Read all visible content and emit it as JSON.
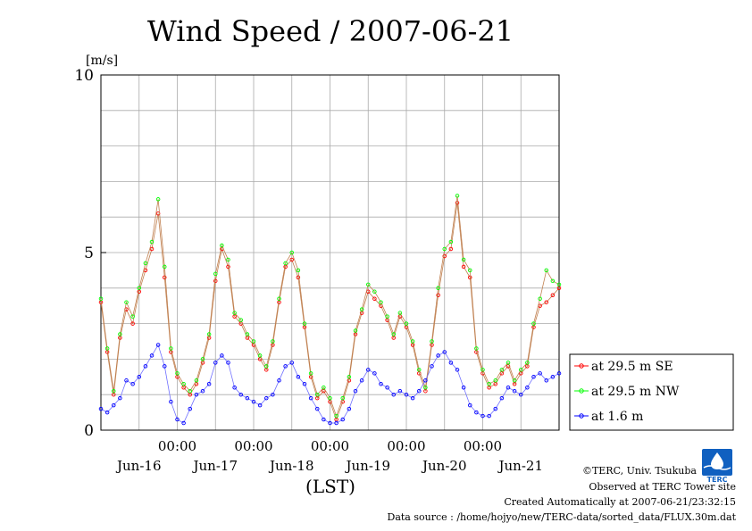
{
  "chart_data": {
    "type": "line",
    "title": "Wind Speed / 2007-06-21",
    "ylabel": "[m/s]",
    "xlabel": "(LST)",
    "ylim": [
      0,
      10
    ],
    "y_ticks": [
      "0",
      "5",
      "10"
    ],
    "y_tick_values": [
      0,
      5,
      10
    ],
    "x_range_hours": [
      0,
      144
    ],
    "x_tick_label": "00:00",
    "x_ticks_hours": [
      24,
      48,
      72,
      96,
      120
    ],
    "x_day_labels": [
      "Jun-16",
      "Jun-17",
      "Jun-18",
      "Jun-19",
      "Jun-20",
      "Jun-21"
    ],
    "x_day_label_hours": [
      12,
      36,
      60,
      84,
      108,
      132
    ],
    "grid": true,
    "legend_position": "right",
    "series": [
      {
        "name": "at 29.5 m SE",
        "color": "#ff0000",
        "x": [
          0,
          2,
          4,
          6,
          8,
          10,
          12,
          14,
          16,
          18,
          20,
          22,
          24,
          26,
          28,
          30,
          32,
          34,
          36,
          38,
          40,
          42,
          44,
          46,
          48,
          50,
          52,
          54,
          56,
          58,
          60,
          62,
          64,
          66,
          68,
          70,
          72,
          74,
          76,
          78,
          80,
          82,
          84,
          86,
          88,
          90,
          92,
          94,
          96,
          98,
          100,
          102,
          104,
          106,
          108,
          110,
          112,
          114,
          116,
          118,
          120,
          122,
          124,
          126,
          128,
          130,
          132,
          134,
          136,
          138,
          140,
          142,
          144
        ],
        "values": [
          3.6,
          2.2,
          1.0,
          2.6,
          3.4,
          3.0,
          3.9,
          4.5,
          5.1,
          6.1,
          4.3,
          2.2,
          1.5,
          1.2,
          1.0,
          1.3,
          1.9,
          2.6,
          4.2,
          5.1,
          4.6,
          3.2,
          3.0,
          2.6,
          2.4,
          2.0,
          1.7,
          2.4,
          3.6,
          4.6,
          4.8,
          4.3,
          2.9,
          1.5,
          0.9,
          1.1,
          0.8,
          0.3,
          0.8,
          1.4,
          2.7,
          3.3,
          3.9,
          3.7,
          3.5,
          3.1,
          2.6,
          3.2,
          2.9,
          2.4,
          1.6,
          1.1,
          2.4,
          3.8,
          4.9,
          5.1,
          6.4,
          4.6,
          4.3,
          2.2,
          1.6,
          1.2,
          1.3,
          1.6,
          1.8,
          1.3,
          1.6,
          1.8,
          2.9,
          3.5,
          3.6,
          3.8,
          4.0
        ]
      },
      {
        "name": "at 29.5 m NW",
        "color": "#00ff00",
        "x": [
          0,
          2,
          4,
          6,
          8,
          10,
          12,
          14,
          16,
          18,
          20,
          22,
          24,
          26,
          28,
          30,
          32,
          34,
          36,
          38,
          40,
          42,
          44,
          46,
          48,
          50,
          52,
          54,
          56,
          58,
          60,
          62,
          64,
          66,
          68,
          70,
          72,
          74,
          76,
          78,
          80,
          82,
          84,
          86,
          88,
          90,
          92,
          94,
          96,
          98,
          100,
          102,
          104,
          106,
          108,
          110,
          112,
          114,
          116,
          118,
          120,
          122,
          124,
          126,
          128,
          130,
          132,
          134,
          136,
          138,
          140,
          142,
          144
        ],
        "values": [
          3.7,
          2.3,
          1.1,
          2.7,
          3.6,
          3.2,
          4.0,
          4.7,
          5.3,
          6.5,
          4.6,
          2.3,
          1.6,
          1.3,
          1.1,
          1.4,
          2.0,
          2.7,
          4.4,
          5.2,
          4.8,
          3.3,
          3.1,
          2.7,
          2.5,
          2.1,
          1.8,
          2.5,
          3.7,
          4.7,
          5.0,
          4.5,
          3.0,
          1.6,
          1.0,
          1.2,
          0.9,
          0.4,
          0.9,
          1.5,
          2.8,
          3.4,
          4.1,
          3.9,
          3.6,
          3.2,
          2.7,
          3.3,
          3.0,
          2.5,
          1.7,
          1.2,
          2.5,
          4.0,
          5.1,
          5.3,
          6.6,
          4.8,
          4.5,
          2.3,
          1.7,
          1.3,
          1.4,
          1.7,
          1.9,
          1.4,
          1.7,
          1.9,
          3.0,
          3.7,
          4.5,
          4.2,
          4.1
        ]
      },
      {
        "name": "at 1.6 m",
        "color": "#0000ff",
        "x": [
          0,
          2,
          4,
          6,
          8,
          10,
          12,
          14,
          16,
          18,
          20,
          22,
          24,
          26,
          28,
          30,
          32,
          34,
          36,
          38,
          40,
          42,
          44,
          46,
          48,
          50,
          52,
          54,
          56,
          58,
          60,
          62,
          64,
          66,
          68,
          70,
          72,
          74,
          76,
          78,
          80,
          82,
          84,
          86,
          88,
          90,
          92,
          94,
          96,
          98,
          100,
          102,
          104,
          106,
          108,
          110,
          112,
          114,
          116,
          118,
          120,
          122,
          124,
          126,
          128,
          130,
          132,
          134,
          136,
          138,
          140,
          142,
          144
        ],
        "values": [
          0.6,
          0.5,
          0.7,
          0.9,
          1.4,
          1.3,
          1.5,
          1.8,
          2.1,
          2.4,
          1.8,
          0.8,
          0.3,
          0.2,
          0.6,
          1.0,
          1.1,
          1.3,
          1.9,
          2.1,
          1.9,
          1.2,
          1.0,
          0.9,
          0.8,
          0.7,
          0.9,
          1.0,
          1.4,
          1.8,
          1.9,
          1.5,
          1.3,
          0.9,
          0.6,
          0.3,
          0.2,
          0.2,
          0.3,
          0.6,
          1.1,
          1.4,
          1.7,
          1.6,
          1.3,
          1.2,
          1.0,
          1.1,
          1.0,
          0.9,
          1.1,
          1.4,
          1.8,
          2.1,
          2.2,
          1.9,
          1.7,
          1.2,
          0.7,
          0.5,
          0.4,
          0.4,
          0.6,
          0.9,
          1.2,
          1.1,
          1.0,
          1.2,
          1.5,
          1.6,
          1.4,
          1.5,
          1.6
        ]
      }
    ]
  },
  "footer": {
    "copyright": "©TERC, Univ. Tsukuba",
    "observed": "Observed at TERC Tower site",
    "created": "Created Automatically at 2007-06-21/23:32:15",
    "source": "Data source : /home/hojyo/new/TERC-data/sorted_data/FLUX.30m.dat"
  },
  "logo": {
    "text": "TERC",
    "color": "#1060c0"
  }
}
